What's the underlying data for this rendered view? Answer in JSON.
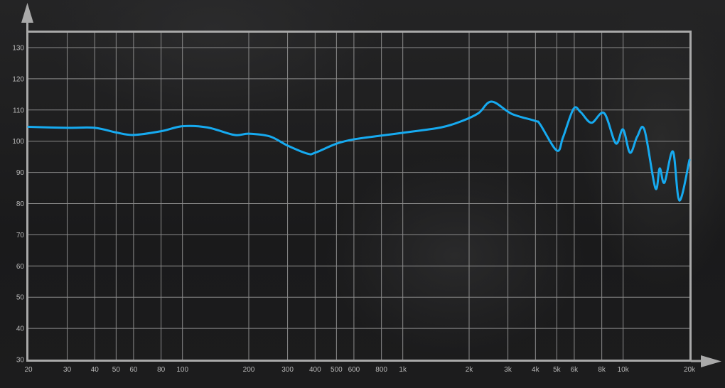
{
  "chart_data": {
    "type": "line",
    "title": "",
    "xlabel": "",
    "ylabel": "",
    "x_scale": "log",
    "xlim": [
      20,
      20000
    ],
    "ylim": [
      30,
      135
    ],
    "grid": true,
    "x_ticks": [
      20,
      30,
      40,
      50,
      60,
      80,
      100,
      200,
      300,
      400,
      500,
      600,
      800,
      1000,
      2000,
      3000,
      4000,
      5000,
      6000,
      8000,
      10000,
      20000
    ],
    "x_tick_labels": [
      "20",
      "30",
      "40",
      "50",
      "60",
      "80",
      "100",
      "200",
      "300",
      "400",
      "500",
      "600",
      "800",
      "1k",
      "2k",
      "3k",
      "4k",
      "5k",
      "6k",
      "8k",
      "10k",
      "20k"
    ],
    "y_ticks": [
      30,
      40,
      50,
      60,
      70,
      80,
      90,
      100,
      110,
      120,
      130
    ],
    "y_tick_labels": [
      "30",
      "40",
      "50",
      "60",
      "70",
      "80",
      "90",
      "100",
      "110",
      "120",
      "130"
    ],
    "series": [
      {
        "color": "#16aaf0",
        "x": [
          20,
          30,
          40,
          50,
          60,
          80,
          100,
          130,
          172,
          200,
          250,
          300,
          370,
          400,
          500,
          600,
          800,
          1000,
          1488,
          1860,
          2206,
          2530,
          3116,
          3990,
          4200,
          5000,
          5340,
          5960,
          6420,
          7180,
          8200,
          9260,
          9990,
          10750,
          11590,
          12500,
          14000,
          14650,
          15400,
          16830,
          18000,
          20000
        ],
        "y": [
          104.6,
          104.3,
          104.3,
          102.8,
          102.0,
          103.2,
          104.8,
          104.4,
          102.0,
          102.4,
          101.5,
          98.6,
          96.0,
          96.3,
          99.2,
          100.6,
          101.8,
          102.7,
          104.4,
          106.5,
          109.0,
          112.7,
          108.8,
          106.5,
          105.4,
          97.0,
          101.3,
          110.4,
          109.3,
          105.9,
          109.0,
          99.3,
          103.8,
          96.3,
          101.5,
          103.6,
          85.0,
          91.3,
          86.7,
          96.7,
          81.0,
          94.0
        ]
      }
    ]
  },
  "colors": {
    "frame": "#a9a9a9",
    "grid": "#8c8c8c",
    "arrow": "#a9a9a9",
    "background": "#1b1b1c"
  }
}
